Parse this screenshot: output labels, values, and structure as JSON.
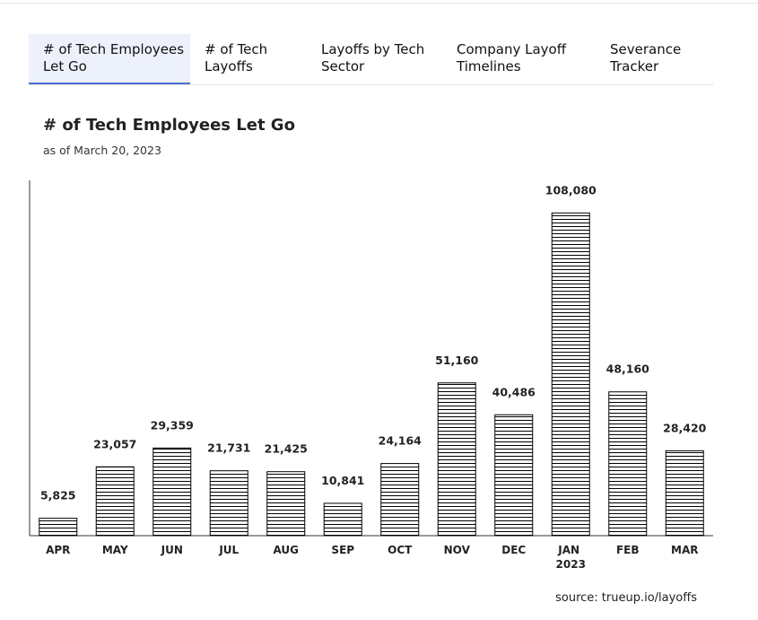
{
  "tabs": [
    "# of Tech Employees Let Go",
    "# of Tech Layoffs",
    "Layoffs by Tech Sector",
    "Company Layoff Timelines",
    "Severance Tracker"
  ],
  "chart_data": {
    "type": "bar",
    "title": "# of Tech Employees Let Go",
    "subtitle": "as of March 20, 2023",
    "categories": [
      "APR",
      "MAY",
      "JUN",
      "JUL",
      "AUG",
      "SEP",
      "OCT",
      "NOV",
      "DEC",
      "JAN 2023",
      "FEB",
      "MAR"
    ],
    "values": [
      5825,
      23057,
      29359,
      21731,
      21425,
      10841,
      24164,
      51160,
      40486,
      108080,
      48160,
      28420
    ],
    "value_labels": [
      "5,825",
      "23,057",
      "29,359",
      "21,731",
      "21,425",
      "10,841",
      "24,164",
      "51,160",
      "40,486",
      "108,080",
      "48,160",
      "28,420"
    ],
    "color": "#000000",
    "ylim": [
      0,
      119000
    ]
  },
  "source": "source: trueup.io/layoffs"
}
